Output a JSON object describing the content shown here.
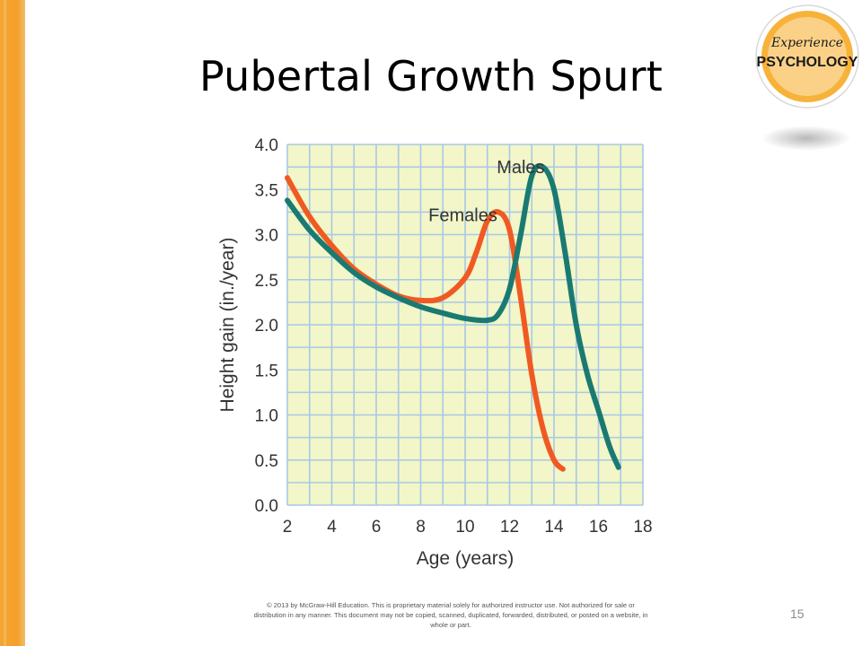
{
  "slide": {
    "title": "Pubertal Growth Spurt",
    "page_number": "15",
    "copyright": "© 2013 by McGraw-Hill Education. This is proprietary material solely for authorized instructor use. Not authorized for sale or distribution in any manner. This document may not be copied, scanned, duplicated, forwarded, distributed, or posted on a website, in whole or part."
  },
  "logo": {
    "top_text": "Experience",
    "main_text": "PSYCHOLOGY",
    "colors": {
      "orange": "#f39a1f",
      "dark": "#1a1a1a"
    }
  },
  "colors": {
    "stripe": "#f4a12b",
    "plot_bg": "#f2f6c8",
    "grid": "#a8c8e6",
    "females": "#f05a22",
    "males": "#1a7a72"
  },
  "chart_data": {
    "type": "line",
    "xlabel": "Age (years)",
    "ylabel": "Height gain (in./year)",
    "xlim": [
      2,
      18
    ],
    "ylim": [
      0,
      4
    ],
    "xticks": [
      2,
      4,
      6,
      8,
      10,
      12,
      14,
      16,
      18
    ],
    "yticks": [
      "0.0",
      "0.5",
      "1.0",
      "1.5",
      "2.0",
      "2.5",
      "3.0",
      "3.5",
      "4.0"
    ],
    "grid": true,
    "series": [
      {
        "name": "Females",
        "color": "#f05a22",
        "x": [
          2,
          3,
          4,
          5,
          6,
          7,
          8,
          9,
          10,
          10.5,
          11,
          11.5,
          12,
          12.5,
          13,
          13.5,
          14,
          14.4
        ],
        "y": [
          3.63,
          3.2,
          2.88,
          2.62,
          2.45,
          2.32,
          2.27,
          2.3,
          2.52,
          2.8,
          3.15,
          3.25,
          3.05,
          2.3,
          1.45,
          0.85,
          0.5,
          0.4
        ]
      },
      {
        "name": "Males",
        "color": "#1a7a72",
        "x": [
          2,
          3,
          4,
          5,
          6,
          7,
          8,
          9,
          10,
          11,
          11.5,
          12,
          12.5,
          13,
          13.5,
          14,
          14.5,
          15,
          15.5,
          16,
          16.5,
          16.9
        ],
        "y": [
          3.38,
          3.05,
          2.8,
          2.58,
          2.42,
          2.3,
          2.2,
          2.13,
          2.07,
          2.05,
          2.12,
          2.4,
          3.0,
          3.65,
          3.75,
          3.5,
          2.8,
          2.0,
          1.45,
          1.05,
          0.65,
          0.42
        ]
      }
    ],
    "labels": [
      {
        "text": "Males",
        "x": 12.5,
        "y": 3.68
      },
      {
        "text": "Females",
        "x": 9.9,
        "y": 3.15
      }
    ]
  }
}
